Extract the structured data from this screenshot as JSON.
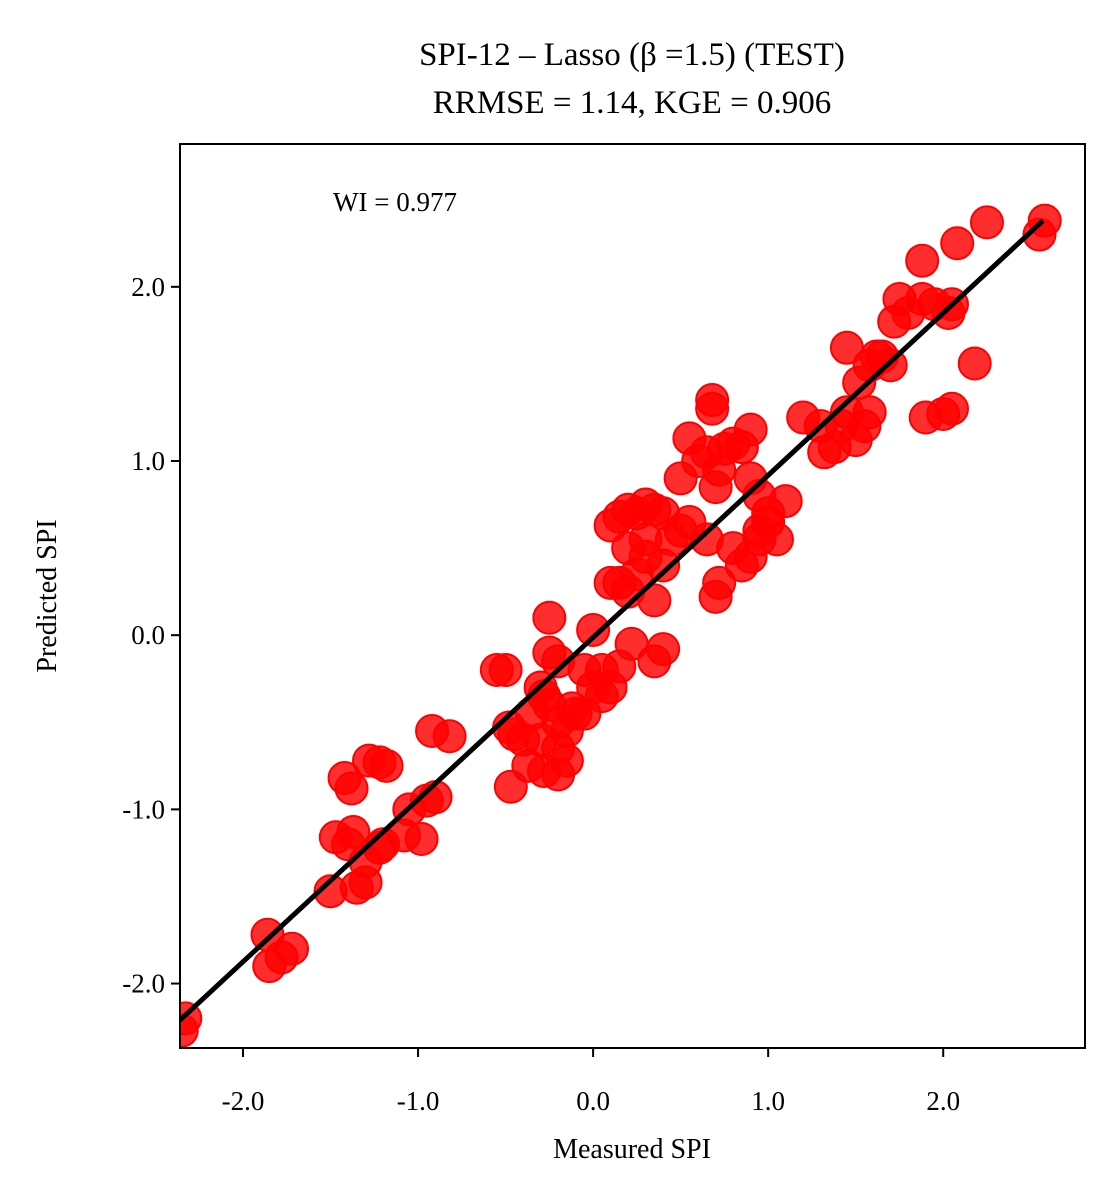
{
  "chart_data": {
    "type": "scatter",
    "title": "SPI-12 – Lasso (β =1.5) (TEST)",
    "subtitle": "RRMSE = 1.14, KGE = 0.906",
    "x_label": "Measured SPI",
    "y_label": "Predicted SPI",
    "annotation": "WI = 0.977",
    "xlim": [
      -2.36,
      2.81
    ],
    "ylim": [
      -2.37,
      2.82
    ],
    "xticks": [
      {
        "value": -2,
        "label": "-2.0"
      },
      {
        "value": -1,
        "label": "-1.0"
      },
      {
        "value": 0,
        "label": "0.0"
      },
      {
        "value": 1,
        "label": "1.0"
      },
      {
        "value": 2,
        "label": "2.0"
      }
    ],
    "yticks": [
      {
        "value": -2,
        "label": "-2.0"
      },
      {
        "value": -1,
        "label": "-1.0"
      },
      {
        "value": 0,
        "label": "0.0"
      },
      {
        "value": 1,
        "label": "1.0"
      },
      {
        "value": 2,
        "label": "2.0"
      }
    ],
    "series": [
      {
        "type": "scatter",
        "color": "#ff0000",
        "x": [
          -2.35,
          -2.33,
          -1.86,
          -1.85,
          -1.78,
          -1.72,
          -1.5,
          -1.47,
          -1.4,
          -1.37,
          -1.35,
          -1.3,
          -1.3,
          -1.22,
          -1.2,
          -1.08,
          -1.05,
          -0.98,
          -0.95,
          -0.9,
          -1.42,
          -1.38,
          -1.28,
          -1.22,
          -1.18,
          -0.92,
          -0.82,
          -0.55,
          -0.5,
          -0.48,
          -0.45,
          -0.4,
          -0.35,
          -0.3,
          -0.28,
          -0.25,
          -0.2,
          -0.25,
          -0.2,
          -0.15,
          -0.1,
          -0.05,
          0.0,
          0.05,
          0.1,
          0.05,
          -0.05,
          0.0,
          -0.25,
          -0.47,
          -0.37,
          -0.28,
          -0.2,
          -0.15,
          -0.2,
          -0.3,
          -0.12,
          0.15,
          0.22,
          0.35,
          0.4,
          0.1,
          0.15,
          0.2,
          0.25,
          0.3,
          0.35,
          0.4,
          0.45,
          0.5,
          0.55,
          0.1,
          0.15,
          0.2,
          0.25,
          0.3,
          0.35,
          0.4,
          0.3,
          0.2,
          0.5,
          0.55,
          0.6,
          0.65,
          0.68,
          0.68,
          0.7,
          0.72,
          0.75,
          0.8,
          0.85,
          0.9,
          0.9,
          0.95,
          0.95,
          1.0,
          1.05,
          1.0,
          0.7,
          0.72,
          0.8,
          0.85,
          0.9,
          0.95,
          0.65,
          1.1,
          1.2,
          1.3,
          1.32,
          1.38,
          1.42,
          1.45,
          1.5,
          1.55,
          1.58,
          1.45,
          1.52,
          1.58,
          1.62,
          1.65,
          1.7,
          1.72,
          1.75,
          1.8,
          1.88,
          1.95,
          2.03,
          2.05,
          1.88,
          2.08,
          2.25,
          2.55,
          2.58,
          1.9,
          2.0,
          2.05,
          2.18
        ],
        "y": [
          -2.27,
          -2.2,
          -1.72,
          -1.9,
          -1.85,
          -1.8,
          -1.47,
          -1.16,
          -1.2,
          -1.13,
          -1.45,
          -1.42,
          -1.3,
          -1.22,
          -1.2,
          -1.15,
          -1.0,
          -1.17,
          -0.95,
          -0.93,
          -0.82,
          -0.88,
          -0.72,
          -0.73,
          -0.75,
          -0.55,
          -0.58,
          -0.2,
          -0.2,
          -0.53,
          -0.57,
          -0.6,
          -0.45,
          -0.3,
          -0.35,
          -0.1,
          -0.15,
          -0.4,
          -0.5,
          -0.55,
          -0.45,
          -0.45,
          -0.3,
          -0.35,
          -0.3,
          -0.2,
          -0.2,
          0.03,
          0.1,
          -0.87,
          -0.75,
          -0.78,
          -0.8,
          -0.72,
          -0.65,
          -0.6,
          -0.42,
          -0.18,
          -0.05,
          -0.15,
          -0.08,
          0.3,
          0.3,
          0.25,
          0.35,
          0.45,
          0.2,
          0.4,
          0.55,
          0.6,
          0.65,
          0.63,
          0.68,
          0.72,
          0.7,
          0.75,
          0.72,
          0.7,
          0.55,
          0.5,
          0.9,
          1.13,
          1.0,
          1.05,
          1.35,
          1.3,
          0.85,
          0.95,
          1.07,
          1.1,
          1.08,
          1.18,
          0.9,
          0.8,
          0.6,
          0.65,
          0.55,
          0.7,
          0.22,
          0.3,
          0.5,
          0.4,
          0.45,
          0.55,
          0.55,
          0.77,
          1.25,
          1.2,
          1.05,
          1.08,
          1.2,
          1.28,
          1.12,
          1.2,
          1.28,
          1.65,
          1.45,
          1.55,
          1.6,
          1.6,
          1.55,
          1.8,
          1.93,
          1.85,
          1.93,
          1.9,
          1.85,
          1.9,
          2.15,
          2.25,
          2.37,
          2.3,
          2.38,
          1.25,
          1.27,
          1.3,
          1.56
        ]
      },
      {
        "type": "line",
        "color": "#000000",
        "x": [
          -2.36,
          2.57
        ],
        "y": [
          -2.21,
          2.38
        ]
      }
    ]
  }
}
